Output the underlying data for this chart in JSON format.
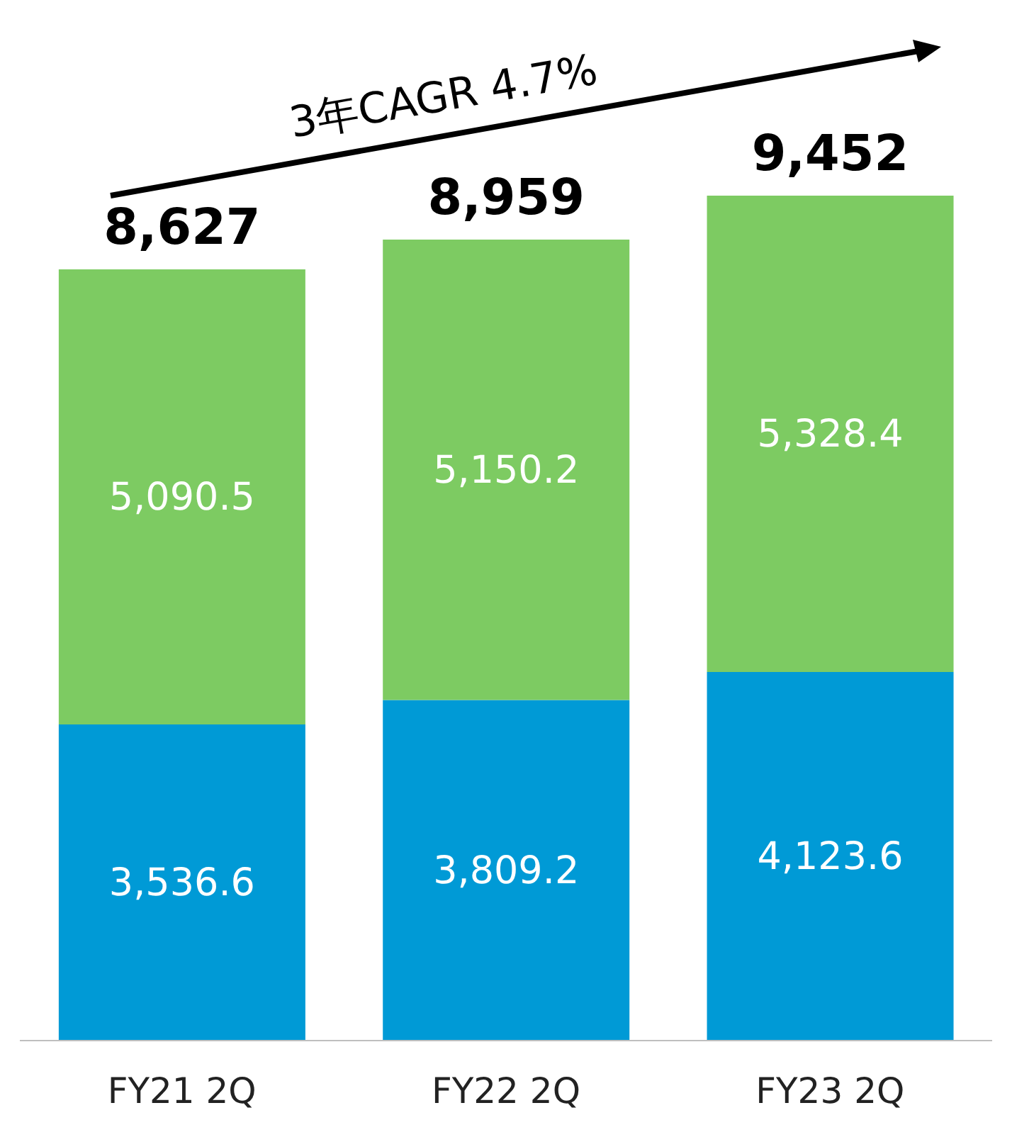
{
  "chart_data": {
    "type": "bar",
    "stacked": true,
    "categories": [
      "FY21 2Q",
      "FY22 2Q",
      "FY23 2Q"
    ],
    "series": [
      {
        "color": "#009ad6",
        "values": [
          3536.6,
          3809.2,
          4123.6
        ],
        "value_labels": [
          "3,536.6",
          "3,809.2",
          "4,123.6"
        ]
      },
      {
        "color": "#7dcb62",
        "values": [
          5090.5,
          5150.2,
          5328.4
        ],
        "value_labels": [
          "5,090.5",
          "5,150.2",
          "5,328.4"
        ]
      }
    ],
    "totals": [
      "8,627",
      "8,959",
      "9,452"
    ],
    "annotations": [
      "3年CAGR 4.7%"
    ],
    "grid": false,
    "legend": false
  }
}
